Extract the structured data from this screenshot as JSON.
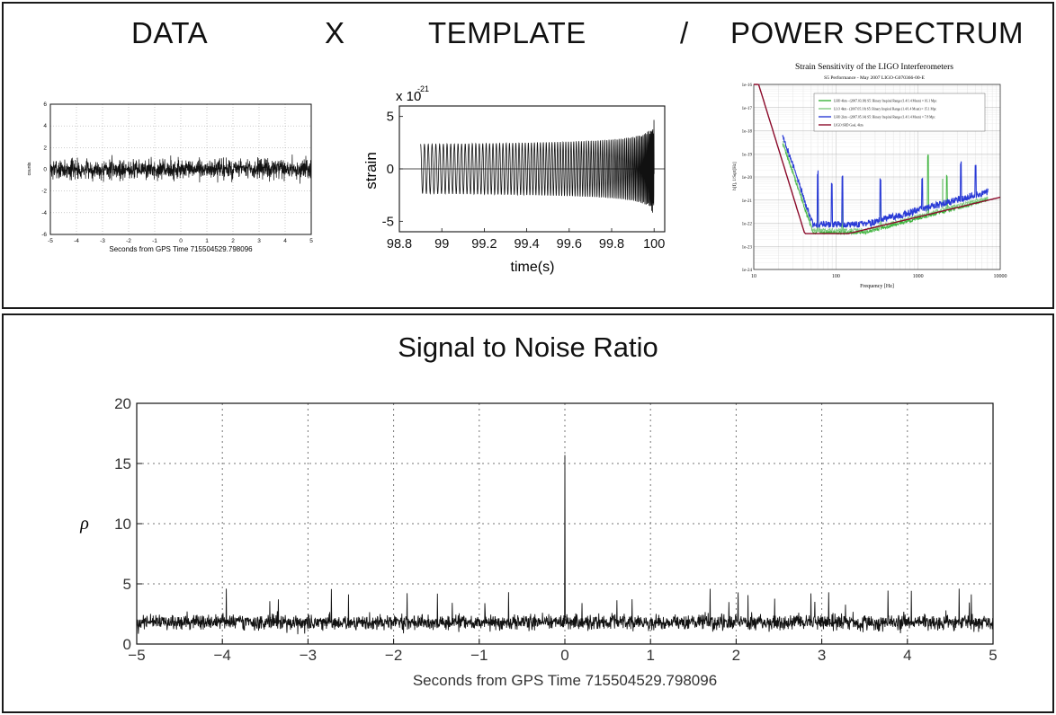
{
  "header": {
    "data_label": "DATA",
    "times_symbol": "X",
    "template_label": "TEMPLATE",
    "divide_symbol": "/",
    "power_spectrum_label": "POWER SPECTRUM"
  },
  "colors": {
    "ink": "#111111",
    "grid": "#9a9a9a",
    "psd_red": "#8b0a2a",
    "psd_blue": "#2a3bd6",
    "psd_green": "#3cb33c"
  },
  "chart_data": [
    {
      "id": "data_timeseries",
      "type": "line",
      "title": "",
      "xlabel": "Seconds from GPS Time 715504529.798096",
      "ylabel": "counts",
      "xlim": [
        -5,
        5
      ],
      "ylim": [
        -6,
        6
      ],
      "xticks": [
        -5,
        -4,
        -3,
        -2,
        -1,
        0,
        1,
        2,
        3,
        4,
        5
      ],
      "yticks": [
        -6,
        -4,
        -2,
        0,
        2,
        4,
        6
      ],
      "grid": true,
      "noise_amplitude": 1.2
    },
    {
      "id": "template_chirp",
      "type": "line",
      "title": "",
      "xlabel": "time(s)",
      "ylabel": "strain",
      "y_multiplier": "x 10",
      "y_exponent": "-21",
      "xlim": [
        98.8,
        100.05
      ],
      "ylim": [
        -6,
        6
      ],
      "xticks": [
        98.8,
        99,
        99.2,
        99.4,
        99.6,
        99.8,
        100
      ],
      "xticklabels": [
        "98.8",
        "99",
        "99.2",
        "99.4",
        "99.6",
        "99.8",
        "100"
      ],
      "yticks": [
        -5,
        0,
        5
      ],
      "grid": false,
      "start_time": 98.9,
      "end_time": 100.0,
      "start_amplitude": 1.5,
      "peak_amplitude": 5
    },
    {
      "id": "ligo_psd",
      "type": "line",
      "title": "Strain Sensitivity of the LIGO Interferometers",
      "subtitle": "S5 Performance - May 2007      LIGO-G070366-00-E",
      "xlabel": "Frequency [Hz]",
      "ylabel": "h[f], 1/Sqrt[Hz]",
      "x_scale": "log",
      "y_scale": "log",
      "xlim": [
        10,
        10000
      ],
      "ylim": [
        1e-24,
        1e-16
      ],
      "xticklabels": [
        "10",
        "100",
        "1000",
        "10000"
      ],
      "yticklabels": [
        "1e-16",
        "1e-17",
        "1e-18",
        "1e-19",
        "1e-20",
        "1e-21",
        "1e-22",
        "1e-23",
        "1e-24"
      ],
      "grid": true,
      "legend_position": "top",
      "series": [
        {
          "name": "LHO 4km - (2007.03.18) S5: Binary Inspiral Range (1.4/1.4 Msun) = 16.1 Mpc",
          "color": "#3cb33c"
        },
        {
          "name": "LLO 4km - (2007.05.10) S5: Binary Inspiral Range (1.4/1.4 Msun) = 15.1 Mpc",
          "color": "#7fc97f"
        },
        {
          "name": "LHO 2km - (2007.05.14) S5: Binary Inspiral Range (1.4/1.4 Msun) = 7.8 Mpc",
          "color": "#2a3bd6"
        },
        {
          "name": "LIGO SRD Goal, 4km",
          "color": "#8b0a2a"
        }
      ]
    },
    {
      "id": "snr",
      "type": "line",
      "title": "Signal to Noise Ratio",
      "xlabel": "Seconds from GPS Time 715504529.798096",
      "ylabel": "ρ",
      "xlim": [
        -5,
        5
      ],
      "ylim": [
        0,
        20
      ],
      "xticks": [
        -5,
        -4,
        -3,
        -2,
        -1,
        0,
        1,
        2,
        3,
        4,
        5
      ],
      "xticklabels": [
        "−5",
        "−4",
        "−3",
        "−2",
        "−1",
        "0",
        "1",
        "2",
        "3",
        "4",
        "5"
      ],
      "yticks": [
        0,
        5,
        10,
        15,
        20
      ],
      "grid": true,
      "peak_time": 0,
      "peak_value": 15.7,
      "noise_floor": 1.8
    }
  ]
}
